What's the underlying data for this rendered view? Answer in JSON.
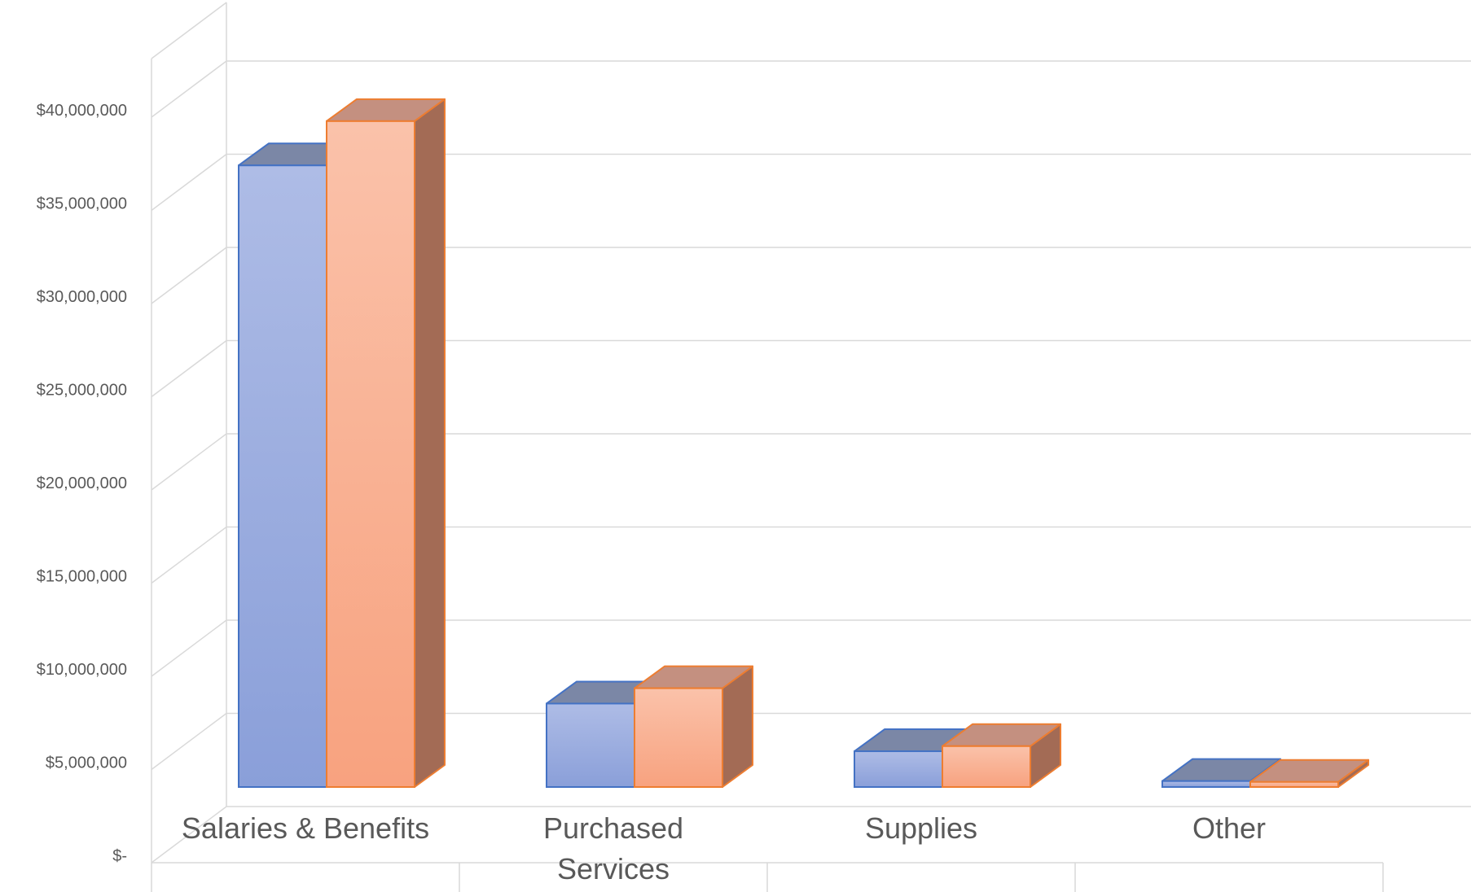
{
  "chart_data": {
    "type": "bar",
    "title": "",
    "xlabel": "",
    "ylabel": "",
    "categories": [
      "Salaries & Benefits",
      "Purchased Services",
      "Supplies",
      "Other"
    ],
    "series": [
      {
        "values": [
          36500000,
          4900000,
          2100000,
          350000
        ]
      },
      {
        "values": [
          39100000,
          5800000,
          2400000,
          300000
        ]
      }
    ],
    "ylim": [
      0,
      40000000
    ],
    "ytick_labels": [
      "$-",
      "$5,000,000",
      "$10,000,000",
      "$15,000,000",
      "$20,000,000",
      "$25,000,000",
      "$30,000,000",
      "$35,000,000",
      "$40,000,000"
    ],
    "grid": true,
    "legend": "none",
    "style": "3d-clustered-column",
    "colors": {
      "series_front": [
        "#8EA4DC",
        "#F9A98A"
      ],
      "series_top": [
        "#7B87A6",
        "#C49080"
      ],
      "series_side": [
        "#6C7CA8",
        "#A36B55"
      ],
      "series_edge": [
        "#4472C4",
        "#ED7D31"
      ],
      "grid": "#D9D9D9",
      "text": "#595959"
    }
  }
}
